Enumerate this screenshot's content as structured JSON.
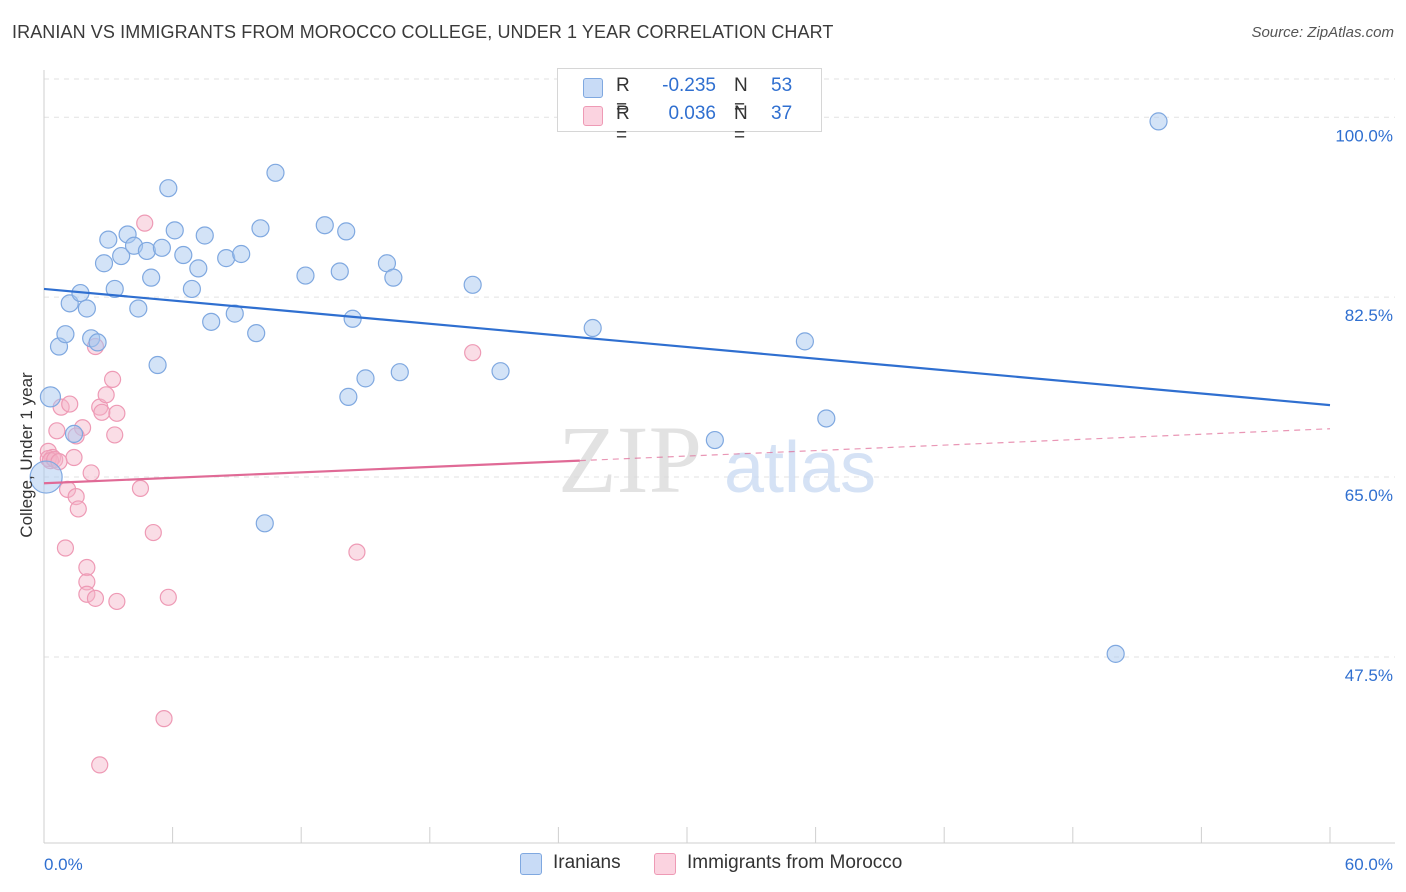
{
  "title": "IRANIAN VS IMMIGRANTS FROM MOROCCO COLLEGE, UNDER 1 YEAR CORRELATION CHART",
  "source": "Source: ZipAtlas.com",
  "watermark": {
    "zip": "ZIP",
    "atlas": "atlas"
  },
  "legend": {
    "rows": [
      {
        "r_label": "R =",
        "r_value": "-0.235",
        "n_label": "N =",
        "n_value": "53",
        "color": "#a8c7f0"
      },
      {
        "r_label": "R =",
        "r_value": "0.036",
        "n_label": "N =",
        "n_value": "37",
        "color": "#f5b3c8"
      }
    ]
  },
  "bottom_legend": {
    "iranians": "Iranians",
    "morocco": "Immigrants from Morocco"
  },
  "colors": {
    "blue_fill": "#a8c7f0",
    "blue_stroke": "#7fa8e0",
    "blue_line": "#2f6fd0",
    "pink_fill": "#f5b3c8",
    "pink_stroke": "#ee9ab5",
    "pink_line": "#e06a96",
    "axis_label": "#2f6fd0"
  },
  "chart_data": {
    "type": "scatter",
    "title": "IRANIAN VS IMMIGRANTS FROM MOROCCO COLLEGE, UNDER 1 YEAR CORRELATION CHART",
    "xlabel": "",
    "ylabel": "College, Under 1 year",
    "xlim": [
      0,
      60
    ],
    "ylim": [
      29.4,
      104.6
    ],
    "x_tick_labels": [
      "0.0%",
      "60.0%"
    ],
    "y_ticks": [
      47.5,
      65.0,
      82.5,
      100.0
    ],
    "y_tick_labels": [
      "47.5%",
      "65.0%",
      "82.5%",
      "100.0%"
    ],
    "grid": true,
    "series": [
      {
        "name": "Iranians",
        "points": [
          [
            0.3,
            72.8
          ],
          [
            0.7,
            77.7
          ],
          [
            1.0,
            78.9
          ],
          [
            1.2,
            81.9
          ],
          [
            1.4,
            69.2
          ],
          [
            1.7,
            82.9
          ],
          [
            2.0,
            81.4
          ],
          [
            2.2,
            78.5
          ],
          [
            2.5,
            78.1
          ],
          [
            2.8,
            85.8
          ],
          [
            3.0,
            88.1
          ],
          [
            3.3,
            83.3
          ],
          [
            3.6,
            86.5
          ],
          [
            3.9,
            88.6
          ],
          [
            4.2,
            87.5
          ],
          [
            4.4,
            81.4
          ],
          [
            4.8,
            87.0
          ],
          [
            5.0,
            84.4
          ],
          [
            5.3,
            75.9
          ],
          [
            5.5,
            87.3
          ],
          [
            5.8,
            93.1
          ],
          [
            6.1,
            89.0
          ],
          [
            6.5,
            86.6
          ],
          [
            6.9,
            83.3
          ],
          [
            7.2,
            85.3
          ],
          [
            7.5,
            88.5
          ],
          [
            7.8,
            80.1
          ],
          [
            8.5,
            86.3
          ],
          [
            8.9,
            80.9
          ],
          [
            9.2,
            86.7
          ],
          [
            9.9,
            79.0
          ],
          [
            10.1,
            89.2
          ],
          [
            10.3,
            60.5
          ],
          [
            10.8,
            94.6
          ],
          [
            12.2,
            84.6
          ],
          [
            13.1,
            89.5
          ],
          [
            13.8,
            85.0
          ],
          [
            14.1,
            88.9
          ],
          [
            14.2,
            72.8
          ],
          [
            14.4,
            80.4
          ],
          [
            15.0,
            74.6
          ],
          [
            16.0,
            85.8
          ],
          [
            16.3,
            84.4
          ],
          [
            16.6,
            75.2
          ],
          [
            20.0,
            83.7
          ],
          [
            21.3,
            75.3
          ],
          [
            25.6,
            79.5
          ],
          [
            31.3,
            68.6
          ],
          [
            35.5,
            78.2
          ],
          [
            36.5,
            70.7
          ],
          [
            50.0,
            47.8
          ],
          [
            52.0,
            99.6
          ],
          [
            0.1,
            65.0
          ]
        ],
        "r": -0.235,
        "n": 53,
        "trend": [
          [
            0,
            83.3
          ],
          [
            60,
            72.0
          ]
        ]
      },
      {
        "name": "Immigrants from Morocco",
        "points": [
          [
            0.2,
            67.5
          ],
          [
            0.4,
            66.9
          ],
          [
            0.6,
            69.5
          ],
          [
            0.8,
            71.8
          ],
          [
            1.0,
            58.1
          ],
          [
            1.1,
            63.8
          ],
          [
            1.2,
            72.1
          ],
          [
            1.4,
            66.9
          ],
          [
            1.5,
            63.1
          ],
          [
            1.6,
            61.9
          ],
          [
            1.8,
            69.8
          ],
          [
            2.0,
            56.2
          ],
          [
            2.0,
            54.8
          ],
          [
            2.0,
            53.6
          ],
          [
            2.2,
            65.4
          ],
          [
            2.4,
            77.7
          ],
          [
            2.4,
            53.2
          ],
          [
            2.6,
            37.0
          ],
          [
            2.6,
            71.8
          ],
          [
            2.7,
            71.3
          ],
          [
            2.9,
            73.0
          ],
          [
            3.2,
            74.5
          ],
          [
            3.3,
            69.1
          ],
          [
            3.4,
            71.2
          ],
          [
            3.4,
            52.9
          ],
          [
            4.5,
            63.9
          ],
          [
            5.1,
            59.6
          ],
          [
            4.7,
            89.7
          ],
          [
            5.6,
            41.5
          ],
          [
            5.8,
            53.3
          ],
          [
            14.6,
            57.7
          ],
          [
            20.0,
            77.1
          ],
          [
            0.2,
            66.8
          ],
          [
            0.3,
            66.6
          ],
          [
            0.5,
            66.7
          ],
          [
            0.7,
            66.5
          ],
          [
            1.5,
            69.0
          ]
        ],
        "r": 0.036,
        "n": 37,
        "trend": [
          [
            0,
            64.4
          ],
          [
            25,
            66.6
          ]
        ],
        "trend_extension": [
          [
            25,
            66.6
          ],
          [
            60,
            69.7
          ]
        ]
      }
    ]
  }
}
